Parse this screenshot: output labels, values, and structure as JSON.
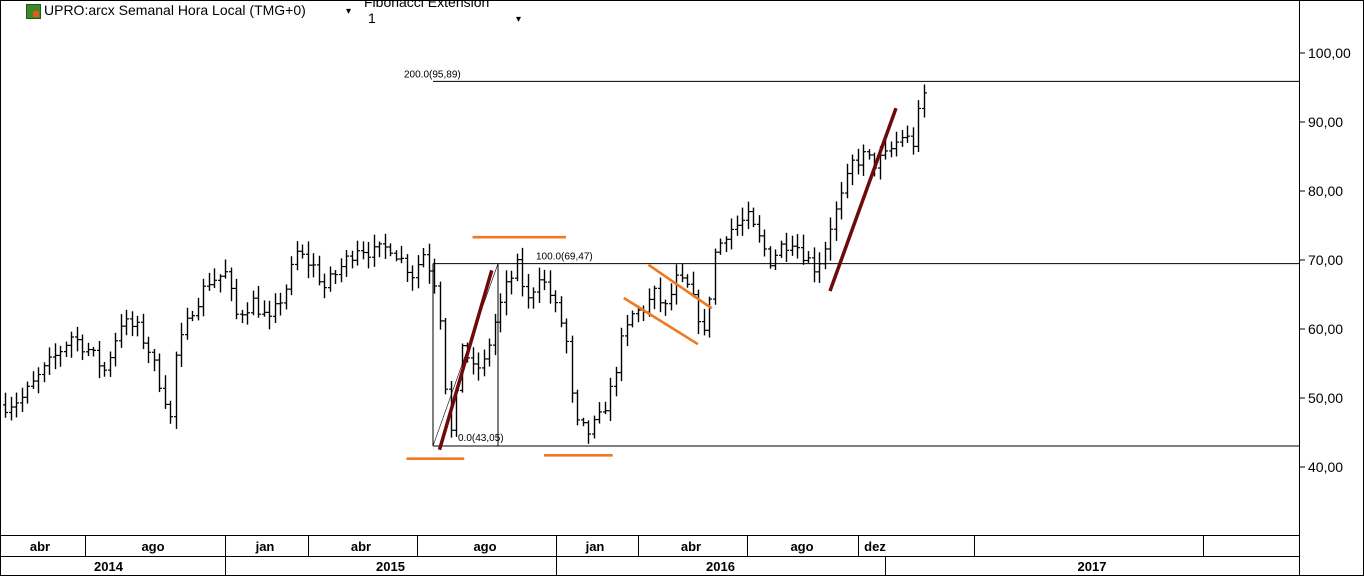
{
  "header": {
    "instrument_title": "UPRO:arcx Semanal Hora Local (TMG+0)",
    "study_name": "Fibonacci Extension",
    "study_value": "1",
    "dropdown_glyph": "▾",
    "logo_icon": "app-logo-icon"
  },
  "colors": {
    "bars": "#000000",
    "trend_dark": "#6e0a0a",
    "channel_orange": "#f07820",
    "fib_level_line": "#000000"
  },
  "chart_data": {
    "type": "ohlc-weekly",
    "ylim": [
      29,
      104
    ],
    "price_axis_ticks": [
      "100,00",
      "90,00",
      "80,00",
      "70,00",
      "60,00",
      "50,00",
      "40,00"
    ],
    "price_axis_values": [
      100,
      90,
      80,
      70,
      60,
      50,
      40
    ],
    "month_labels": [
      {
        "label": "abr",
        "date": "2014-04"
      },
      {
        "label": "ago",
        "date": "2014-08"
      },
      {
        "label": "jan",
        "date": "2015-01"
      },
      {
        "label": "abr",
        "date": "2015-04"
      },
      {
        "label": "ago",
        "date": "2015-08"
      },
      {
        "label": "jan",
        "date": "2016-01"
      },
      {
        "label": "abr",
        "date": "2016-04"
      },
      {
        "label": "ago",
        "date": "2016-08"
      },
      {
        "label": "dez",
        "date": "2016-12"
      }
    ],
    "year_labels": [
      "2014",
      "2015",
      "2016",
      "2017"
    ],
    "fib_levels": [
      {
        "label": "200.0(95,89)",
        "value": 95.89
      },
      {
        "label": "100.0(69,47)",
        "value": 69.47
      },
      {
        "label": "0.0(43,05)",
        "value": 43.05
      }
    ],
    "price_path": [
      [
        0,
        49
      ],
      [
        3,
        50
      ],
      [
        8,
        55
      ],
      [
        12,
        59
      ],
      [
        15,
        57
      ],
      [
        18,
        54
      ],
      [
        21,
        61
      ],
      [
        24,
        60
      ],
      [
        26,
        57
      ],
      [
        29,
        50
      ],
      [
        30,
        47
      ],
      [
        31,
        56
      ],
      [
        34,
        63
      ],
      [
        37,
        67
      ],
      [
        40,
        68
      ],
      [
        42,
        62
      ],
      [
        45,
        64
      ],
      [
        48,
        61
      ],
      [
        51,
        66
      ],
      [
        53,
        71
      ],
      [
        56,
        69
      ],
      [
        58,
        66
      ],
      [
        61,
        69
      ],
      [
        64,
        72
      ],
      [
        67,
        71
      ],
      [
        70,
        72
      ],
      [
        72,
        70
      ],
      [
        74,
        68
      ],
      [
        76,
        71
      ],
      [
        78,
        67
      ],
      [
        79,
        62
      ],
      [
        80,
        52
      ],
      [
        81,
        45
      ],
      [
        82,
        50
      ],
      [
        83,
        58
      ],
      [
        85,
        54
      ],
      [
        87,
        55
      ],
      [
        89,
        61
      ],
      [
        91,
        66
      ],
      [
        93,
        69
      ],
      [
        95,
        64
      ],
      [
        97,
        68
      ],
      [
        99,
        65
      ],
      [
        101,
        61
      ],
      [
        102,
        58
      ],
      [
        103,
        50
      ],
      [
        104,
        46
      ],
      [
        106,
        45
      ],
      [
        108,
        47
      ],
      [
        110,
        51
      ],
      [
        112,
        58
      ],
      [
        114,
        62
      ],
      [
        116,
        63
      ],
      [
        118,
        65
      ],
      [
        120,
        63
      ],
      [
        122,
        67
      ],
      [
        124,
        66
      ],
      [
        126,
        62
      ],
      [
        127,
        59
      ],
      [
        128,
        65
      ],
      [
        129,
        71
      ],
      [
        131,
        74
      ],
      [
        133,
        75
      ],
      [
        135,
        76
      ],
      [
        137,
        73
      ],
      [
        139,
        70
      ],
      [
        141,
        72
      ],
      [
        143,
        73
      ],
      [
        145,
        71
      ],
      [
        147,
        69
      ],
      [
        148,
        70
      ],
      [
        149,
        72
      ],
      [
        150,
        75
      ],
      [
        152,
        79
      ],
      [
        154,
        84
      ],
      [
        156,
        85
      ],
      [
        158,
        84
      ],
      [
        160,
        85
      ],
      [
        161,
        86
      ],
      [
        163,
        88
      ],
      [
        165,
        87
      ],
      [
        166,
        91
      ],
      [
        167,
        94
      ]
    ],
    "trend_lines": [
      {
        "style": "dark",
        "from": [
          79,
          42.5
        ],
        "to": [
          88.5,
          68.5
        ]
      },
      {
        "style": "dark",
        "from": [
          150,
          65.5
        ],
        "to": [
          162,
          92
        ]
      }
    ],
    "channel_lines": [
      {
        "from": [
          73,
          41.2
        ],
        "to": [
          83.5,
          41.2
        ]
      },
      {
        "from": [
          85,
          73.3
        ],
        "to": [
          102,
          73.3
        ]
      },
      {
        "from": [
          98,
          41.7
        ],
        "to": [
          110.5,
          41.7
        ]
      },
      {
        "from": [
          112.5,
          64.5
        ],
        "to": [
          126,
          57.8
        ]
      },
      {
        "from": [
          117,
          69.3
        ],
        "to": [
          128.5,
          63
        ]
      }
    ]
  }
}
